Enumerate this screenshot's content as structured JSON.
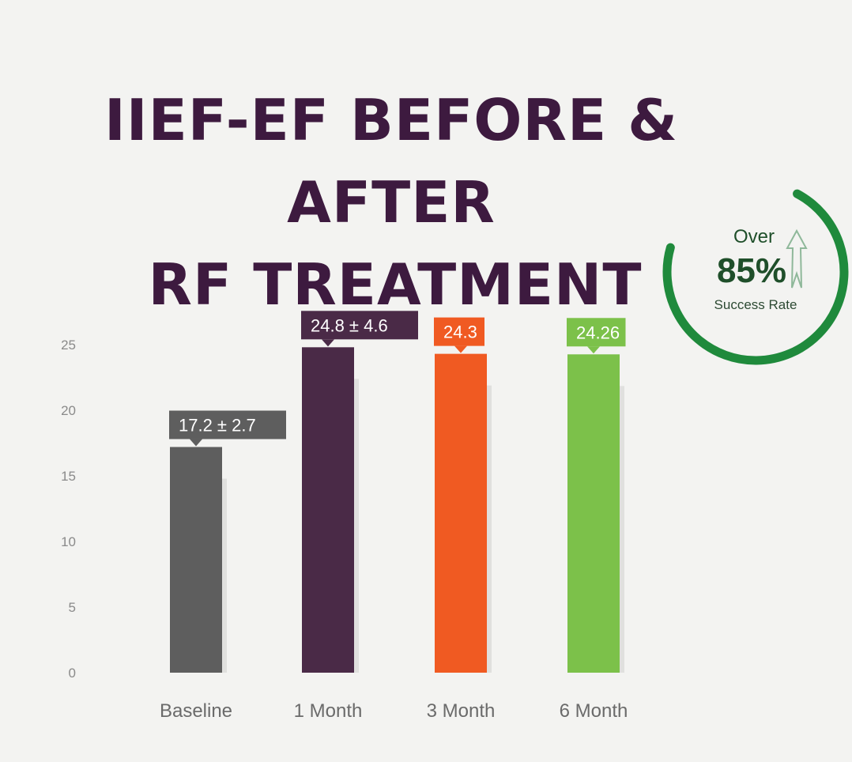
{
  "title": {
    "line1": "IIEF-EF BEFORE & AFTER",
    "line2": "RF TREATMENT"
  },
  "badge": {
    "over": "Over",
    "percent": "85%",
    "subtitle": "Success Rate",
    "ring_color": "#1f8a3c",
    "arrow_icon": "up-arrow-icon"
  },
  "chart_data": {
    "type": "bar",
    "categories": [
      "Baseline",
      "1 Month",
      "3 Month",
      "6 Month"
    ],
    "values": [
      17.2,
      24.8,
      24.3,
      24.26
    ],
    "data_labels": [
      "17.2  ±  2.7",
      "24.8  ±  4.6",
      "24.3",
      "24.26"
    ],
    "colors": [
      "#5e5e5e",
      "#4a2a47",
      "#f05a22",
      "#7cc14a"
    ],
    "yticks": [
      "0",
      "5",
      "10",
      "15",
      "20",
      "25"
    ],
    "ylim": [
      0,
      25
    ],
    "grid": false,
    "legend": "none"
  }
}
